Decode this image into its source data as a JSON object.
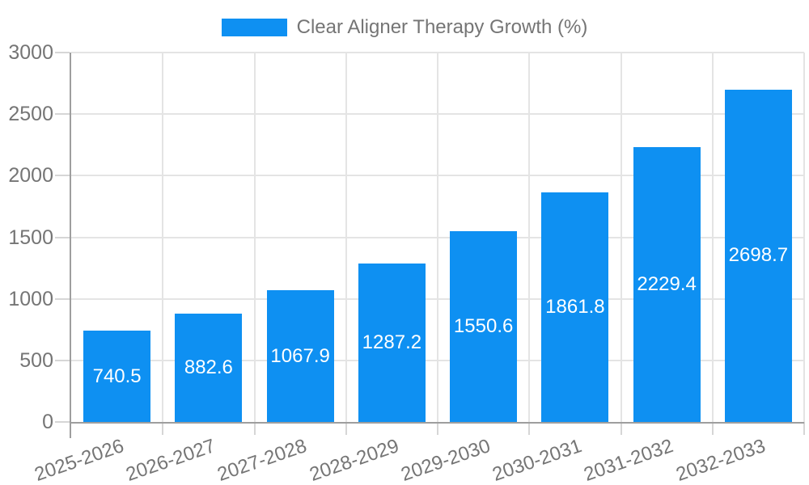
{
  "chart_data": {
    "type": "bar",
    "title": "Clear Aligner Therapy Growth (%)",
    "legend": {
      "position": "top",
      "entries": [
        "Clear Aligner Therapy Growth (%)"
      ]
    },
    "categories": [
      "2025-2026",
      "2026-2027",
      "2027-2028",
      "2028-2029",
      "2029-2030",
      "2030-2031",
      "2031-2032",
      "2032-2033"
    ],
    "series": [
      {
        "name": "Clear Aligner Therapy Growth (%)",
        "values": [
          740.5,
          882.6,
          1067.9,
          1287.2,
          1550.6,
          1861.8,
          2229.4,
          2698.7
        ]
      }
    ],
    "value_labels": [
      "740.5",
      "882.6",
      "1067.9",
      "1287.2",
      "1550.6",
      "1861.8",
      "2229.4",
      "2698.7"
    ],
    "xlabel": "",
    "ylabel": "",
    "ylim": [
      0,
      3000
    ],
    "yticks": [
      0,
      500,
      1000,
      1500,
      2000,
      2500,
      3000
    ],
    "grid": true,
    "x_tick_rotation_deg": -19,
    "colors": {
      "bar": "#0e90f2",
      "value_label": "#ffffff",
      "axis_text": "#757575",
      "grid_line": "#e4e4e4",
      "tick_mark": "#d6d6d6",
      "axis_line": "#9e9e9e",
      "background": "#ffffff"
    }
  }
}
